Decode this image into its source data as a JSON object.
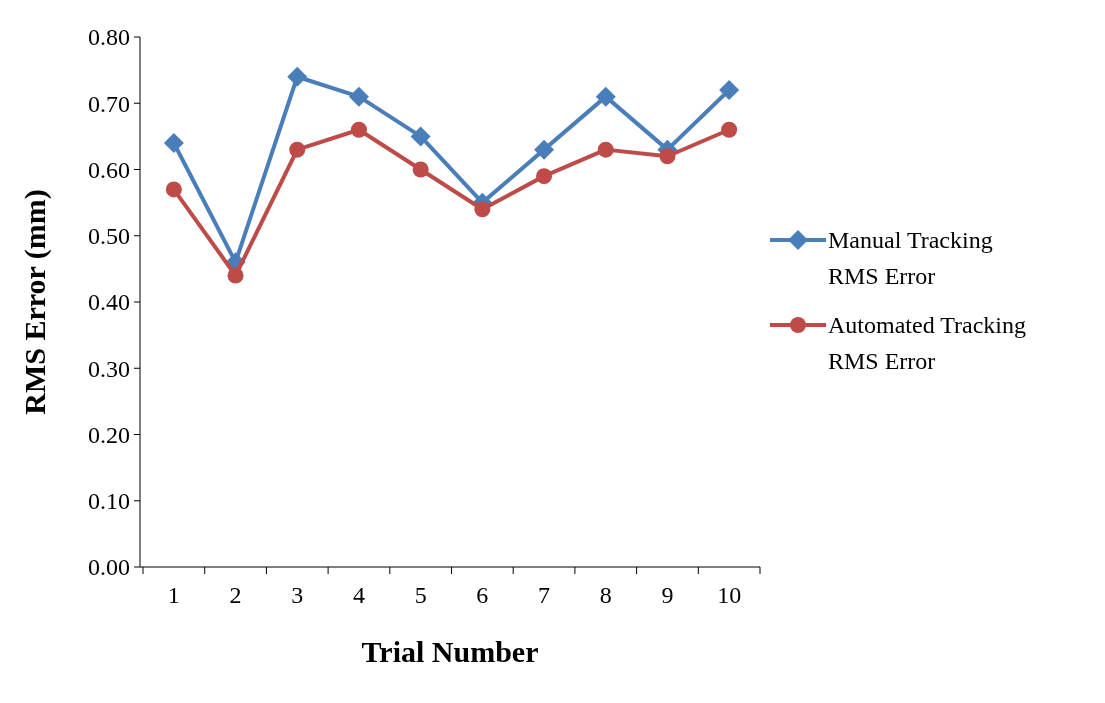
{
  "chart_data": {
    "type": "line",
    "xlabel": "Trial Number",
    "ylabel": "RMS Error (mm)",
    "categories": [
      "1",
      "2",
      "3",
      "4",
      "5",
      "6",
      "7",
      "8",
      "9",
      "10"
    ],
    "series": [
      {
        "name": "Manual Tracking RMS Error",
        "color": "#4a7ebb",
        "marker": "diamond",
        "values": [
          0.64,
          0.46,
          0.74,
          0.71,
          0.65,
          0.55,
          0.63,
          0.71,
          0.63,
          0.72
        ]
      },
      {
        "name": "Automated Tracking RMS Error",
        "color": "#be4b48",
        "marker": "circle",
        "values": [
          0.57,
          0.44,
          0.63,
          0.66,
          0.6,
          0.54,
          0.59,
          0.63,
          0.62,
          0.66
        ]
      }
    ],
    "ylim": [
      0,
      0.8
    ],
    "yticks": [
      {
        "value": 0,
        "label": "0.00"
      },
      {
        "value": 0.1,
        "label": "0.10"
      },
      {
        "value": 0.2,
        "label": "0.20"
      },
      {
        "value": 0.3,
        "label": "0.30"
      },
      {
        "value": 0.4,
        "label": "0.40"
      },
      {
        "value": 0.5,
        "label": "0.50"
      },
      {
        "value": 0.6,
        "label": "0.60"
      },
      {
        "value": 0.7,
        "label": "0.70"
      },
      {
        "value": 0.8,
        "label": "0.80"
      }
    ],
    "grid": false,
    "legend": "right",
    "line_style": "solid"
  }
}
